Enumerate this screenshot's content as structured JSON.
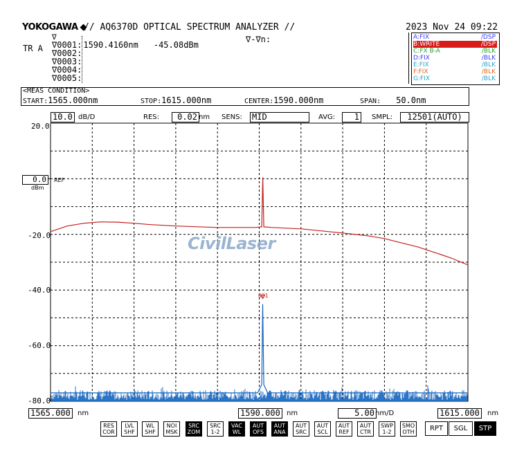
{
  "header": {
    "brand": "YOKOGAWA",
    "brand_mark": "◆",
    "title": "// AQ6370D OPTICAL SPECTRUM ANALYZER //",
    "datetime": "2023 Nov 24 09:22"
  },
  "markers": {
    "delta_label": "∇-∇n:",
    "tr_label": "TR A",
    "marker_head": "∇",
    "rows": [
      {
        "id": "∇0001:",
        "wavelength": "1590.4160nm",
        "level": "-45.08dBm"
      },
      {
        "id": "∇0002:",
        "wavelength": "",
        "level": ""
      },
      {
        "id": "∇0003:",
        "wavelength": "",
        "level": ""
      },
      {
        "id": "∇0004:",
        "wavelength": "",
        "level": ""
      },
      {
        "id": "∇0005:",
        "wavelength": "",
        "level": ""
      }
    ]
  },
  "traces": [
    {
      "name": "A:FIX",
      "state": "/DSP",
      "color": "#3a3aff"
    },
    {
      "name": "B:WRITE",
      "state": "/DSP",
      "color": "#ffffff",
      "highlight": "#d81b1b"
    },
    {
      "name": "C:FX B-A",
      "state": "/BLK",
      "color": "#2e9e2e"
    },
    {
      "name": "D:FIX",
      "state": "/BLK",
      "color": "#3a3aff"
    },
    {
      "name": "E:FIX",
      "state": "/BLK",
      "color": "#2aa6c9"
    },
    {
      "name": "F:FIX",
      "state": "/BLK",
      "color": "#e06a1a"
    },
    {
      "name": "G:FIX",
      "state": "/BLK",
      "color": "#2aa6c9"
    }
  ],
  "meas_condition": {
    "title": "<MEAS CONDITION>",
    "start_label": "START:",
    "start_value": "1565.000nm",
    "stop_label": "STOP:",
    "stop_value": "1615.000nm",
    "center_label": "CENTER:",
    "center_value": "1590.000nm",
    "span_label": "SPAN:",
    "span_value": "50.0nm"
  },
  "settings": {
    "scale_value": "10.0",
    "scale_unit": "dB/D",
    "res_label": "RES:",
    "res_value": "0.02",
    "res_unit": "nm",
    "sens_label": "SENS:",
    "sens_value": "MID",
    "avg_label": "AVG:",
    "avg_value": "1",
    "smpl_label": "SMPL:",
    "smpl_value": "12501(AUTO)"
  },
  "plot": {
    "y_ticks": [
      "20.0",
      "-20.0",
      "-40.0",
      "-60.0",
      "-80.0"
    ],
    "ref_value": "0.0",
    "ref_label": "REF",
    "ref_unit": "dBm",
    "marker_tag": "001",
    "watermark": "CivilLaser",
    "x_start": "1565.000",
    "x_center": "1590.000",
    "x_stop": "1615.000",
    "x_unit": "nm",
    "span_per_div": "5.00",
    "span_per_div_unit": "nm/D",
    "trace_b_color": "#c41e1e",
    "trace_a_color": "#1565c0"
  },
  "chart_data": {
    "type": "line",
    "xlim": [
      1565,
      1615
    ],
    "ylim": [
      -80,
      20
    ],
    "xlabel": "nm",
    "ylabel": "dBm",
    "series": [
      {
        "name": "B:WRITE",
        "x": [
          1565,
          1567,
          1569,
          1571,
          1573,
          1575,
          1577,
          1580,
          1585,
          1589.5,
          1590.3,
          1590.42,
          1590.55,
          1591.5,
          1595,
          1600,
          1603,
          1605,
          1607,
          1609,
          1611,
          1613,
          1615
        ],
        "y": [
          -19,
          -17,
          -16,
          -15.5,
          -15.6,
          -16,
          -16.5,
          -17,
          -17.5,
          -17.5,
          -17.3,
          0.5,
          -17.3,
          -17.5,
          -18,
          -19.5,
          -20.5,
          -21.5,
          -23,
          -24.5,
          -26.5,
          -28.5,
          -31
        ]
      },
      {
        "name": "A:FIX",
        "x": [
          1565,
          1575,
          1585,
          1589.8,
          1590.3,
          1590.416,
          1590.55,
          1591,
          1600,
          1610,
          1615
        ],
        "y": [
          -77,
          -77,
          -77,
          -77,
          -74,
          -45.08,
          -74,
          -77,
          -77,
          -77,
          -77
        ]
      }
    ]
  },
  "softkeys": [
    {
      "l1": "RES",
      "l2": "COR",
      "on": false
    },
    {
      "l1": "LVL",
      "l2": "SHF",
      "on": false
    },
    {
      "l1": "WL",
      "l2": "SHF",
      "on": false
    },
    {
      "l1": "NOI",
      "l2": "MSK",
      "on": false
    },
    {
      "l1": "SRC",
      "l2": "ZOM",
      "on": true
    },
    {
      "l1": "SRC",
      "l2": "1-2",
      "on": false
    },
    {
      "l1": "VAC",
      "l2": "WL",
      "on": true
    },
    {
      "l1": "AUT",
      "l2": "OFS",
      "on": true
    },
    {
      "l1": "AUT",
      "l2": "ANA",
      "on": true
    },
    {
      "l1": "AUT",
      "l2": "SRC",
      "on": false
    },
    {
      "l1": "AUT",
      "l2": "SCL",
      "on": false
    },
    {
      "l1": "AUT",
      "l2": "REF",
      "on": false
    },
    {
      "l1": "AUT",
      "l2": "CTR",
      "on": false
    },
    {
      "l1": "SWP",
      "l2": "1-2",
      "on": false
    },
    {
      "l1": "SMO",
      "l2": "OTH",
      "on": false
    }
  ],
  "sweep_buttons": [
    {
      "label": "RPT",
      "on": false
    },
    {
      "label": "SGL",
      "on": false
    },
    {
      "label": "STP",
      "on": true
    }
  ]
}
